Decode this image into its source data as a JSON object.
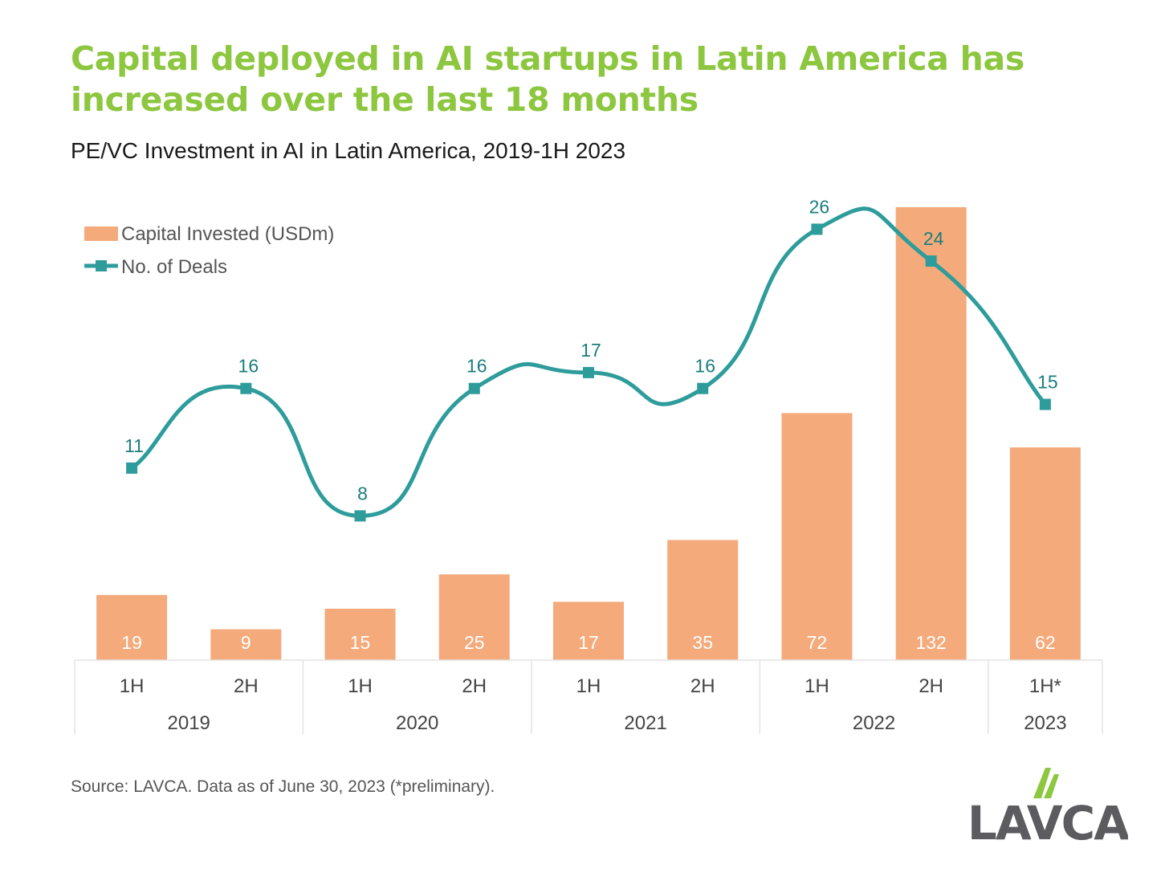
{
  "title": "Capital deployed in AI startups in Latin America has increased over the last 18 months",
  "subtitle": "PE/VC Investment in AI in Latin America, 2019-1H 2023",
  "source": "Source: LAVCA. Data as of June 30, 2023 (*preliminary).",
  "logo_text": "LAVCA",
  "colors": {
    "bars": "#f4aa7b",
    "line": "#2e9c9b",
    "title": "#8dc63f",
    "bar_label": "#ffffff",
    "line_label": "#1b7e7d"
  },
  "chart_data": {
    "type": "bar",
    "categories": [
      "1H",
      "2H",
      "1H",
      "2H",
      "1H",
      "2H",
      "1H",
      "2H",
      "1H*"
    ],
    "years": [
      {
        "label": "2019",
        "span": 2
      },
      {
        "label": "2020",
        "span": 2
      },
      {
        "label": "2021",
        "span": 2
      },
      {
        "label": "2022",
        "span": 2
      },
      {
        "label": "2023",
        "span": 1
      }
    ],
    "series": [
      {
        "name": "Capital Invested (USDm)",
        "type": "bar",
        "values": [
          19,
          9,
          15,
          25,
          17,
          35,
          72,
          132,
          62
        ]
      },
      {
        "name": "No. of Deals",
        "type": "line",
        "values": [
          11,
          16,
          8,
          16,
          17,
          16,
          26,
          24,
          15
        ]
      }
    ],
    "legend_position": "top-left",
    "grid": false
  }
}
